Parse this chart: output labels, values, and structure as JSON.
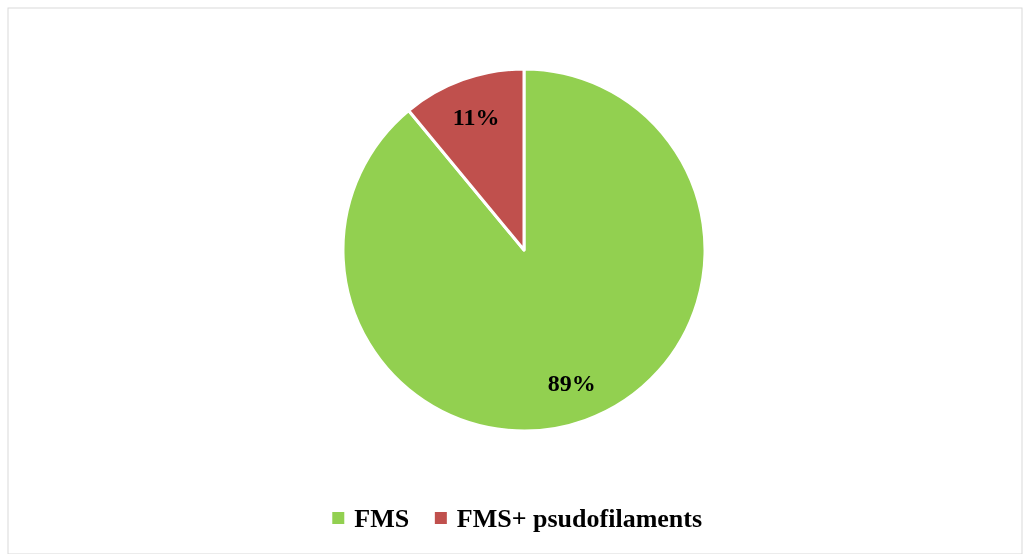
{
  "chart_data": {
    "type": "pie",
    "categories": [
      "FMS",
      "FMS+ psudofilaments"
    ],
    "values": [
      89,
      11
    ],
    "colors": [
      "#92d050",
      "#c0504d"
    ],
    "value_labels": [
      "89%",
      "11%"
    ],
    "legend": "bottom"
  }
}
